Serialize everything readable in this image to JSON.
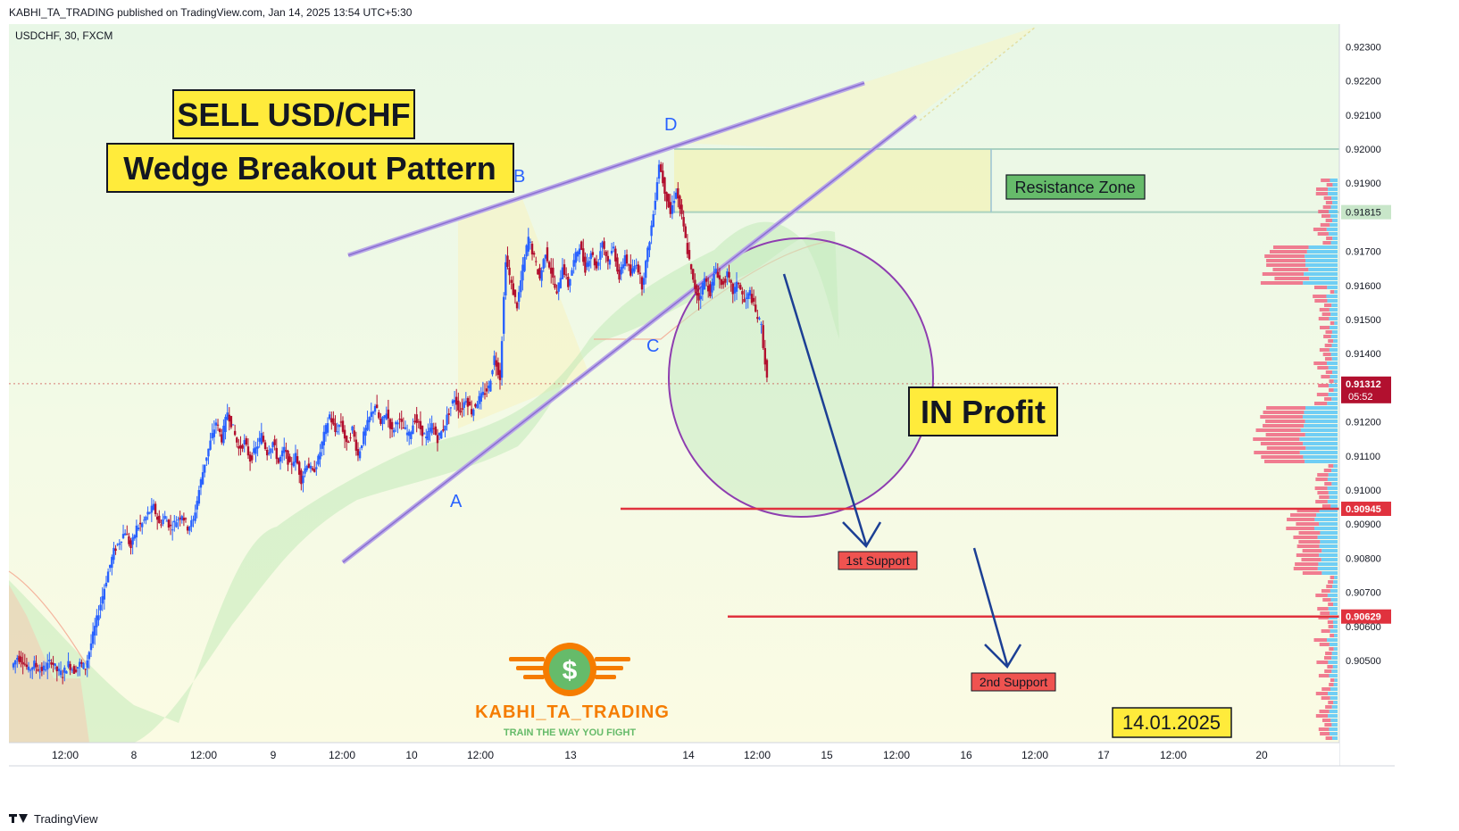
{
  "header": {
    "publisher_line": "KABHI_TA_TRADING published on TradingView.com, Jan 14, 2025 13:54 UTC+5:30",
    "symbol_line": "USDCHF, 30, FXCM"
  },
  "footer": {
    "brand": "TradingView"
  },
  "annotations": {
    "title1": "SELL USD/CHF",
    "title2": "Wedge Breakout Pattern",
    "resistance": "Resistance Zone",
    "in_profit": "IN Profit",
    "support1": "1st Support",
    "support2": "2nd Support",
    "date": "14.01.2025",
    "point_a": "A",
    "point_b": "B",
    "point_c": "C",
    "point_d": "D",
    "logo_name": "KABHI_TA_TRADING",
    "logo_tagline": "TRAIN THE WAY YOU FIGHT",
    "logo_symbol": "$"
  },
  "colors": {
    "bull": "#2962ff",
    "bear": "#b2102f",
    "support_line": "#e0323e",
    "wedge": "#9c7fd6",
    "arrow": "#1c3f94",
    "label_yellow": "#ffeb3b",
    "label_green": "#66bb6a",
    "label_red": "#ef5350",
    "logo_orange": "#f57c00",
    "logo_green": "#66bb6a"
  },
  "chart_data": {
    "type": "candlestick",
    "symbol": "USDCHF",
    "interval": "30",
    "source": "FXCM",
    "y_ticks": [
      "0.92300",
      "0.92200",
      "0.92100",
      "0.92000",
      "0.91900",
      "0.91815",
      "0.91700",
      "0.91600",
      "0.91500",
      "0.91400",
      "0.91312",
      "0.91200",
      "0.91100",
      "0.91000",
      "0.90945",
      "0.90900",
      "0.90800",
      "0.90700",
      "0.90629",
      "0.90600",
      "0.90500"
    ],
    "ylim": [
      0.9044,
      0.9232
    ],
    "x_ticks": [
      "12:00",
      "8",
      "12:00",
      "9",
      "12:00",
      "10",
      "12:00",
      "13",
      "14",
      "12:00",
      "15",
      "12:00",
      "16",
      "12:00",
      "17",
      "12:00",
      "20"
    ],
    "last_price": "0.91312",
    "countdown": "05:52",
    "levels": {
      "resistance_top": 0.92,
      "resistance_bottom": 0.91815,
      "support1": 0.90945,
      "support2": 0.90629
    },
    "swing_points": [
      {
        "label": "A",
        "price": 0.9114
      },
      {
        "label": "B",
        "price": 0.9188
      },
      {
        "label": "C",
        "price": 0.9155
      },
      {
        "label": "D",
        "price": 0.92
      }
    ],
    "price_path": [
      [
        0.9048,
        0.9051
      ],
      [
        0.9051,
        0.905
      ],
      [
        0.905,
        0.9047
      ],
      [
        0.9047,
        0.9049
      ],
      [
        0.9049,
        0.9047
      ],
      [
        0.9047,
        0.9048
      ],
      [
        0.9048,
        0.905
      ],
      [
        0.905,
        0.9047
      ],
      [
        0.9047,
        0.9046
      ],
      [
        0.9046,
        0.9049
      ],
      [
        0.9049,
        0.9047
      ],
      [
        0.9047,
        0.9049
      ],
      [
        0.9049,
        0.9048
      ],
      [
        0.9048,
        0.9055
      ],
      [
        0.9055,
        0.9062
      ],
      [
        0.9062,
        0.9069
      ],
      [
        0.9069,
        0.9076
      ],
      [
        0.9076,
        0.9082
      ],
      [
        0.9082,
        0.9085
      ],
      [
        0.9085,
        0.9088
      ],
      [
        0.9088,
        0.9083
      ],
      [
        0.9083,
        0.9089
      ],
      [
        0.9089,
        0.909
      ],
      [
        0.909,
        0.9093
      ],
      [
        0.9093,
        0.9095
      ],
      [
        0.9095,
        0.909
      ],
      [
        0.909,
        0.9092
      ],
      [
        0.9092,
        0.9089
      ],
      [
        0.9089,
        0.9091
      ],
      [
        0.9091,
        0.9093
      ],
      [
        0.9093,
        0.9089
      ],
      [
        0.9089,
        0.9091
      ],
      [
        0.9091,
        0.91
      ],
      [
        0.91,
        0.9108
      ],
      [
        0.9108,
        0.9114
      ],
      [
        0.9114,
        0.912
      ],
      [
        0.912,
        0.9115
      ],
      [
        0.9115,
        0.9123
      ],
      [
        0.9123,
        0.9118
      ],
      [
        0.9118,
        0.9112
      ],
      [
        0.9112,
        0.9114
      ],
      [
        0.9114,
        0.9109
      ],
      [
        0.9109,
        0.9112
      ],
      [
        0.9112,
        0.9116
      ],
      [
        0.9116,
        0.9111
      ],
      [
        0.9111,
        0.9114
      ],
      [
        0.9114,
        0.9108
      ],
      [
        0.9108,
        0.9112
      ],
      [
        0.9112,
        0.9107
      ],
      [
        0.9107,
        0.911
      ],
      [
        0.911,
        0.9103
      ],
      [
        0.9103,
        0.9108
      ],
      [
        0.9108,
        0.9105
      ],
      [
        0.9105,
        0.9109
      ],
      [
        0.9109,
        0.9116
      ],
      [
        0.9116,
        0.9122
      ],
      [
        0.9122,
        0.9117
      ],
      [
        0.9117,
        0.912
      ],
      [
        0.912,
        0.9113
      ],
      [
        0.9113,
        0.9118
      ],
      [
        0.9118,
        0.911
      ],
      [
        0.911,
        0.9116
      ],
      [
        0.9116,
        0.9121
      ],
      [
        0.9121,
        0.9125
      ],
      [
        0.9125,
        0.9119
      ],
      [
        0.9119,
        0.9123
      ],
      [
        0.9123,
        0.9117
      ],
      [
        0.9117,
        0.9121
      ],
      [
        0.9121,
        0.9118
      ],
      [
        0.9118,
        0.9116
      ],
      [
        0.9116,
        0.9121
      ],
      [
        0.9121,
        0.9118
      ],
      [
        0.9118,
        0.9115
      ],
      [
        0.9115,
        0.9119
      ],
      [
        0.9119,
        0.9115
      ],
      [
        0.9115,
        0.9118
      ],
      [
        0.9118,
        0.9123
      ],
      [
        0.9123,
        0.9127
      ],
      [
        0.9127,
        0.9123
      ],
      [
        0.9123,
        0.9127
      ],
      [
        0.9127,
        0.9123
      ],
      [
        0.9123,
        0.9126
      ],
      [
        0.9126,
        0.9128
      ],
      [
        0.9128,
        0.913
      ],
      [
        0.913,
        0.9139
      ],
      [
        0.9139,
        0.9133
      ],
      [
        0.9133,
        0.9168
      ],
      [
        0.9168,
        0.916
      ],
      [
        0.916,
        0.9154
      ],
      [
        0.9154,
        0.9165
      ],
      [
        0.9165,
        0.9174
      ],
      [
        0.9174,
        0.9168
      ],
      [
        0.9168,
        0.9162
      ],
      [
        0.9162,
        0.917
      ],
      [
        0.917,
        0.9164
      ],
      [
        0.9164,
        0.9157
      ],
      [
        0.9157,
        0.9166
      ],
      [
        0.9166,
        0.916
      ],
      [
        0.916,
        0.9167
      ],
      [
        0.9167,
        0.9172
      ],
      [
        0.9172,
        0.9165
      ],
      [
        0.9165,
        0.917
      ],
      [
        0.917,
        0.9165
      ],
      [
        0.9165,
        0.9173
      ],
      [
        0.9173,
        0.9167
      ],
      [
        0.9167,
        0.9171
      ],
      [
        0.9171,
        0.9162
      ],
      [
        0.9162,
        0.9169
      ],
      [
        0.9169,
        0.9163
      ],
      [
        0.9163,
        0.9167
      ],
      [
        0.9167,
        0.916
      ],
      [
        0.916,
        0.917
      ],
      [
        0.917,
        0.9181
      ],
      [
        0.9181,
        0.9196
      ],
      [
        0.9196,
        0.9188
      ],
      [
        0.9188,
        0.9181
      ],
      [
        0.9181,
        0.9188
      ],
      [
        0.9188,
        0.918
      ],
      [
        0.918,
        0.917
      ],
      [
        0.917,
        0.9161
      ],
      [
        0.9161,
        0.9156
      ],
      [
        0.9156,
        0.9162
      ],
      [
        0.9162,
        0.9158
      ],
      [
        0.9158,
        0.9165
      ],
      [
        0.9165,
        0.916
      ],
      [
        0.916,
        0.9163
      ],
      [
        0.9163,
        0.9158
      ],
      [
        0.9158,
        0.9161
      ],
      [
        0.9161,
        0.9155
      ],
      [
        0.9155,
        0.9158
      ],
      [
        0.9158,
        0.9152
      ],
      [
        0.9152,
        0.9148
      ],
      [
        0.9148,
        0.9132
      ]
    ]
  }
}
